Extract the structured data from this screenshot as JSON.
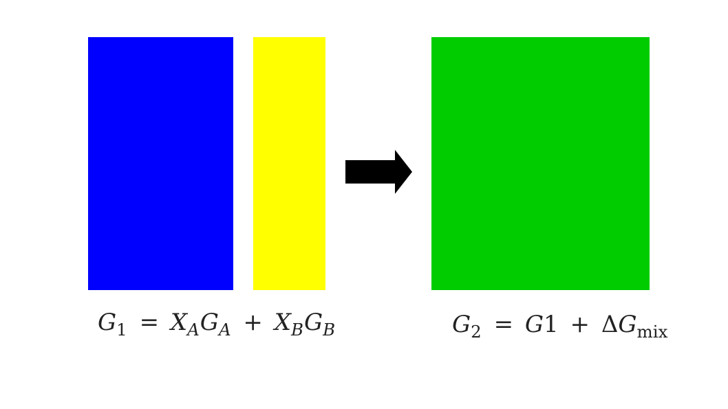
{
  "colors": {
    "component_a": "#0000ff",
    "component_b": "#ffff00",
    "mixture": "#00cc00",
    "arrow": "#000000"
  },
  "icons": {
    "transition_arrow": "right-arrow-icon"
  },
  "equations": {
    "left": {
      "lhs_symbol": "G",
      "lhs_subscript": "1",
      "equals": "=",
      "term1_x": "X",
      "term1_x_sub": "A",
      "term1_g": "G",
      "term1_g_sub": "A",
      "plus": "+",
      "term2_x": "X",
      "term2_x_sub": "B",
      "term2_g": "G",
      "term2_g_sub": "B"
    },
    "right": {
      "lhs_symbol": "G",
      "lhs_subscript": "2",
      "equals": "=",
      "term1_g": "G",
      "term1_num": "1",
      "plus": "+",
      "delta": "Δ",
      "term2_g": "G",
      "term2_sub": "mix"
    }
  }
}
